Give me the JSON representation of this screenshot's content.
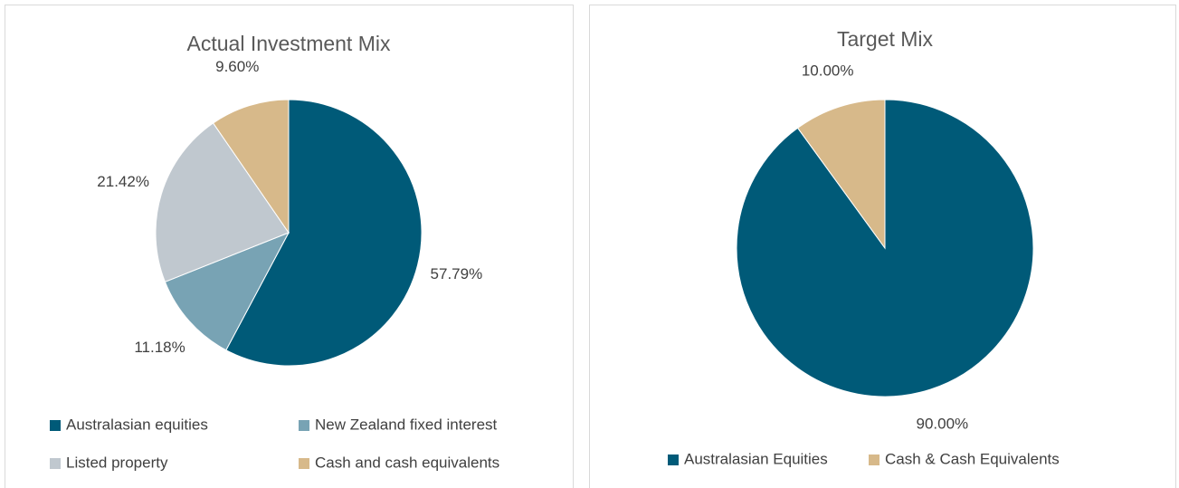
{
  "chart_data": [
    {
      "type": "pie",
      "title": "Actual Investment Mix",
      "categories": [
        "Australasian equities",
        "New Zealand fixed interest",
        "Listed property",
        "Cash and cash equivalents"
      ],
      "values": [
        57.79,
        11.18,
        21.42,
        9.6
      ],
      "value_labels": [
        "57.79%",
        "11.18%",
        "21.42%",
        "9.60%"
      ],
      "colors": [
        "#005a78",
        "#78a3b4",
        "#c0c8cf",
        "#d7b98a"
      ]
    },
    {
      "type": "pie",
      "title": "Target Mix",
      "categories": [
        "Australasian Equities",
        "Cash & Cash Equivalents"
      ],
      "values": [
        90,
        10
      ],
      "value_labels": [
        "90.00%",
        "10.00%"
      ],
      "colors": [
        "#005a78",
        "#d7b98a"
      ]
    }
  ]
}
